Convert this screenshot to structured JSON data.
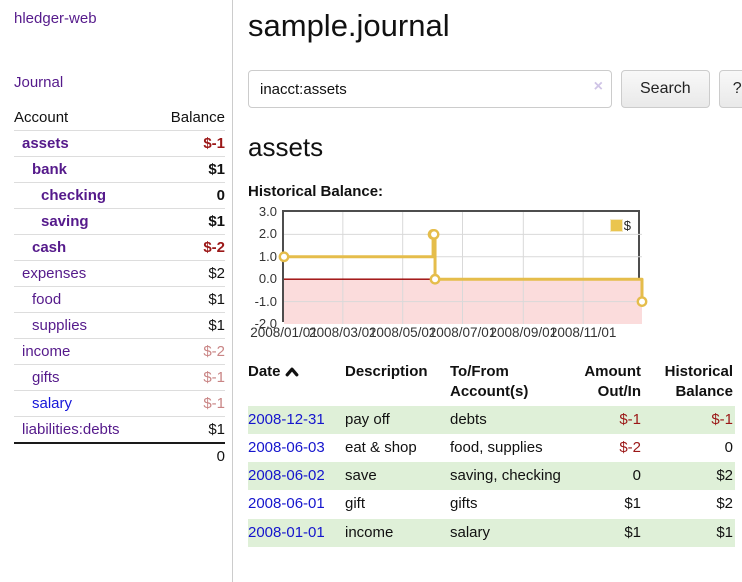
{
  "sidebar": {
    "app_title": "hledger-web",
    "journal_link": "Journal",
    "accounts_table": {
      "headers": {
        "account": "Account",
        "balance": "Balance"
      },
      "rows": [
        {
          "name": "assets",
          "balance": "$-1",
          "level": 1,
          "bold": true,
          "balance_style": "neg-strong",
          "link_style": "purple"
        },
        {
          "name": "bank",
          "balance": "$1",
          "level": 2,
          "bold": true,
          "balance_style": "pos",
          "link_style": "purple"
        },
        {
          "name": "checking",
          "balance": "0",
          "level": 3,
          "bold": true,
          "balance_style": "pos",
          "link_style": "purple"
        },
        {
          "name": "saving",
          "balance": "$1",
          "level": 3,
          "bold": true,
          "balance_style": "pos",
          "link_style": "purple"
        },
        {
          "name": "cash",
          "balance": "$-2",
          "level": 2,
          "bold": true,
          "balance_style": "neg-strong",
          "link_style": "purple"
        },
        {
          "name": "expenses",
          "balance": "$2",
          "level": 1,
          "bold": false,
          "balance_style": "pos",
          "link_style": "purple"
        },
        {
          "name": "food",
          "balance": "$1",
          "level": 2,
          "bold": false,
          "balance_style": "pos",
          "link_style": "purple"
        },
        {
          "name": "supplies",
          "balance": "$1",
          "level": 2,
          "bold": false,
          "balance_style": "pos",
          "link_style": "purple"
        },
        {
          "name": "income",
          "balance": "$-2",
          "level": 1,
          "bold": false,
          "balance_style": "neg-dim",
          "link_style": "purple"
        },
        {
          "name": "gifts",
          "balance": "$-1",
          "level": 2,
          "bold": false,
          "balance_style": "neg-dim",
          "link_style": "purple"
        },
        {
          "name": "salary",
          "balance": "$-1",
          "level": 2,
          "bold": false,
          "balance_style": "neg-dim",
          "link_style": "blue"
        },
        {
          "name": "liabilities:debts",
          "balance": "$1",
          "level": 1,
          "bold": false,
          "balance_style": "pos",
          "link_style": "purple"
        }
      ],
      "total": "0"
    }
  },
  "main": {
    "title": "sample.journal",
    "search": {
      "value": "inacct:assets",
      "clear_icon": "×",
      "button_label": "Search",
      "help_label": "?"
    },
    "account_heading": "assets",
    "chart_label": "Historical Balance:"
  },
  "chart_data": {
    "type": "line",
    "title": "Historical Balance",
    "step": true,
    "series": [
      {
        "name": "$",
        "points": [
          [
            "2008-01-01",
            1
          ],
          [
            "2008-06-01",
            2
          ],
          [
            "2008-06-02",
            2
          ],
          [
            "2008-06-03",
            0
          ],
          [
            "2008-12-31",
            -1
          ]
        ]
      }
    ],
    "x_range": [
      "2008-01-01",
      "2008-12-31"
    ],
    "xticks": [
      "2008/01/01",
      "2008/03/01",
      "2008/05/01",
      "2008/07/01",
      "2008/09/01",
      "2008/11/01"
    ],
    "yticks": [
      "3.0",
      "2.0",
      "1.0",
      "0.0",
      "-1.0",
      "-2.0"
    ],
    "ylim": [
      -2,
      3
    ],
    "legend": {
      "label": "$",
      "position": "top-right"
    },
    "grid": true,
    "colors": {
      "line": "#e5bd4b",
      "marker_fill": "#ffffff",
      "negative_area": "#fbdcdc",
      "zero_line": "#990000",
      "gridline": "#d9d9d9"
    }
  },
  "register_table": {
    "headers": {
      "date": "Date",
      "description": "Description",
      "accounts": "To/From Account(s)",
      "amount": "Amount Out/In",
      "balance": "Historical Balance"
    },
    "rows": [
      {
        "date": "2008-12-31",
        "description": "pay off",
        "accounts": "debts",
        "amount": "$-1",
        "amount_neg": true,
        "balance": "$-1",
        "balance_neg": true
      },
      {
        "date": "2008-06-03",
        "description": "eat & shop",
        "accounts": "food, supplies",
        "amount": "$-2",
        "amount_neg": true,
        "balance": "0",
        "balance_neg": false
      },
      {
        "date": "2008-06-02",
        "description": "save",
        "accounts": "saving, checking",
        "amount": "0",
        "amount_neg": false,
        "balance": "$2",
        "balance_neg": false
      },
      {
        "date": "2008-06-01",
        "description": "gift",
        "accounts": "gifts",
        "amount": "$1",
        "amount_neg": false,
        "balance": "$2",
        "balance_neg": false
      },
      {
        "date": "2008-01-01",
        "description": "income",
        "accounts": "salary",
        "amount": "$1",
        "amount_neg": false,
        "balance": "$1",
        "balance_neg": false
      }
    ]
  }
}
